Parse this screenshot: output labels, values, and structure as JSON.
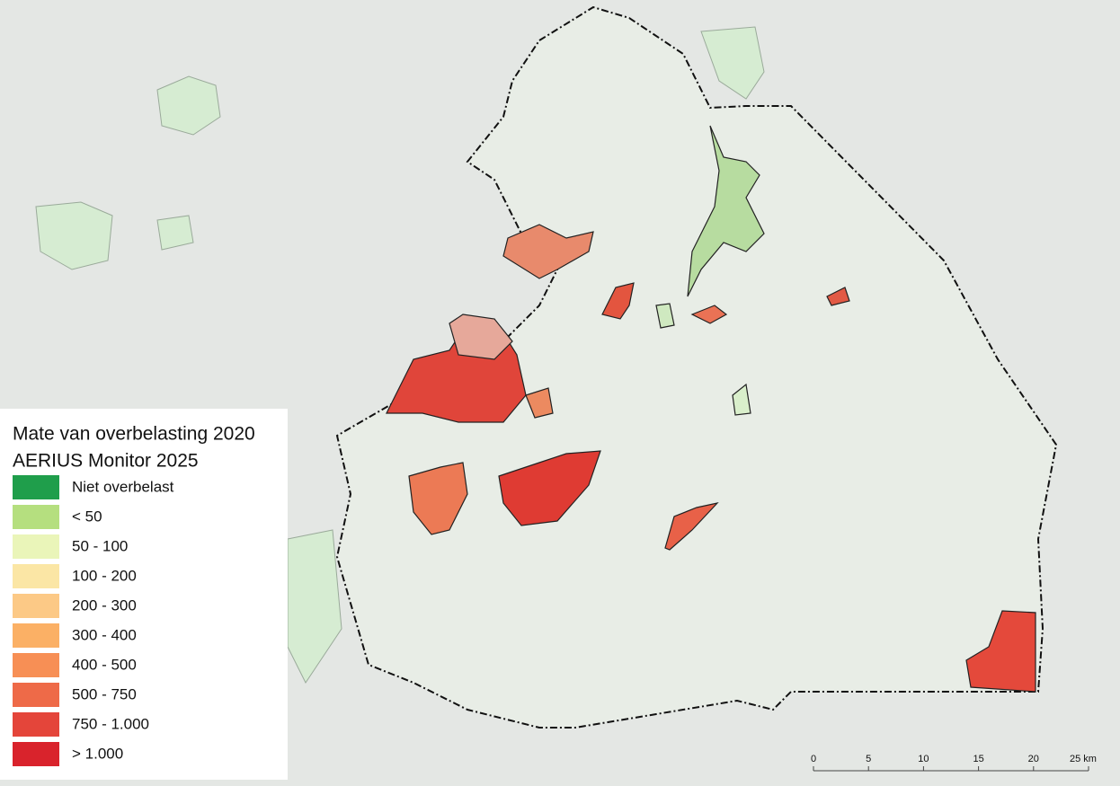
{
  "legend": {
    "title": "Mate van overbelasting 2020",
    "subtitle": "AERIUS Monitor 2025",
    "items": [
      {
        "label": "Niet overbelast",
        "color": "#1f9e4b"
      },
      {
        "label": "< 50",
        "color": "#b5df7f"
      },
      {
        "label": "50 - 100",
        "color": "#eaf5b9"
      },
      {
        "label": "100 - 200",
        "color": "#fbe6a5"
      },
      {
        "label": "200 - 300",
        "color": "#fcc986"
      },
      {
        "label": "300 - 400",
        "color": "#fbb065"
      },
      {
        "label": "400 - 500",
        "color": "#f78f55"
      },
      {
        "label": "500 - 750",
        "color": "#ee6a48"
      },
      {
        "label": "750 - 1.000",
        "color": "#e4453a"
      },
      {
        "label": "> 1.000",
        "color": "#d9232c"
      }
    ]
  },
  "scale_bar": {
    "ticks": [
      "0",
      "5",
      "10",
      "15",
      "20",
      "25 km"
    ]
  }
}
